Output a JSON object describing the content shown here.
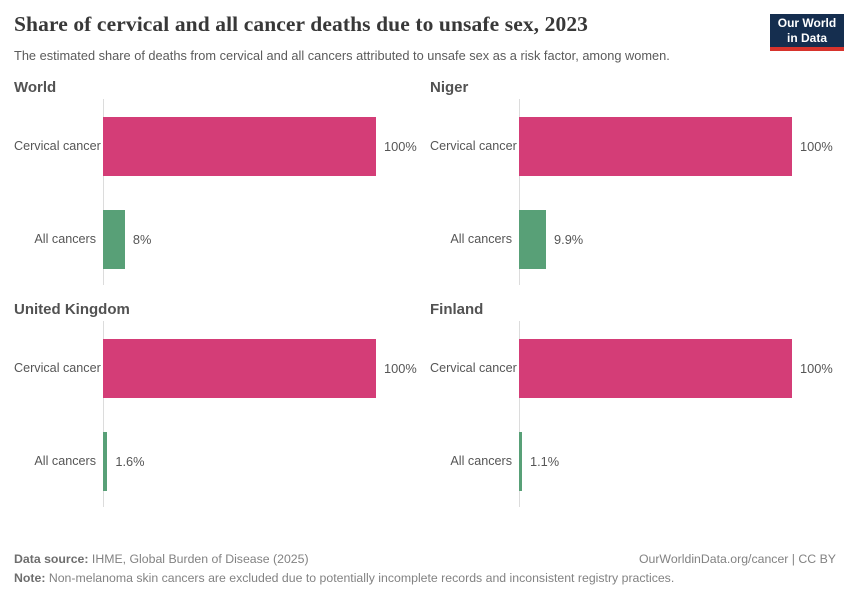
{
  "header": {
    "title": "Share of cervical and all cancer deaths due to unsafe sex, 2023",
    "subtitle": "The estimated share of deaths from cervical and all cancers attributed to unsafe sex as a risk factor, among women.",
    "logo": {
      "line1": "Our World",
      "line2": "in Data"
    }
  },
  "colors": {
    "cervical_bar": "#d43d77",
    "all_cancers_bar": "#58a077",
    "axis_line": "#dcdcdc",
    "logo_bg": "#152e4f",
    "logo_stripe": "#d7332c"
  },
  "chart_data": [
    {
      "type": "bar",
      "title": "World",
      "categories": [
        "Cervical cancer",
        "All cancers"
      ],
      "values": [
        100,
        8
      ],
      "value_labels": [
        "100%",
        "8%"
      ],
      "xlim": [
        0,
        100
      ],
      "grid": false,
      "legend": "none",
      "orientation": "horizontal"
    },
    {
      "type": "bar",
      "title": "Niger",
      "categories": [
        "Cervical cancer",
        "All cancers"
      ],
      "values": [
        100,
        9.9
      ],
      "value_labels": [
        "100%",
        "9.9%"
      ],
      "xlim": [
        0,
        100
      ],
      "grid": false,
      "legend": "none",
      "orientation": "horizontal"
    },
    {
      "type": "bar",
      "title": "United Kingdom",
      "categories": [
        "Cervical cancer",
        "All cancers"
      ],
      "values": [
        100,
        1.6
      ],
      "value_labels": [
        "100%",
        "1.6%"
      ],
      "xlim": [
        0,
        100
      ],
      "grid": false,
      "legend": "none",
      "orientation": "horizontal"
    },
    {
      "type": "bar",
      "title": "Finland",
      "categories": [
        "Cervical cancer",
        "All cancers"
      ],
      "values": [
        100,
        1.1
      ],
      "value_labels": [
        "100%",
        "1.1%"
      ],
      "xlim": [
        0,
        100
      ],
      "grid": false,
      "legend": "none",
      "orientation": "horizontal"
    }
  ],
  "footer": {
    "data_source_label": "Data source:",
    "data_source": " IHME, Global Burden of Disease (2025)",
    "attribution": "OurWorldinData.org/cancer | CC BY",
    "note_label": "Note:",
    "note": " Non-melanoma skin cancers are excluded due to potentially incomplete records and inconsistent registry practices."
  }
}
